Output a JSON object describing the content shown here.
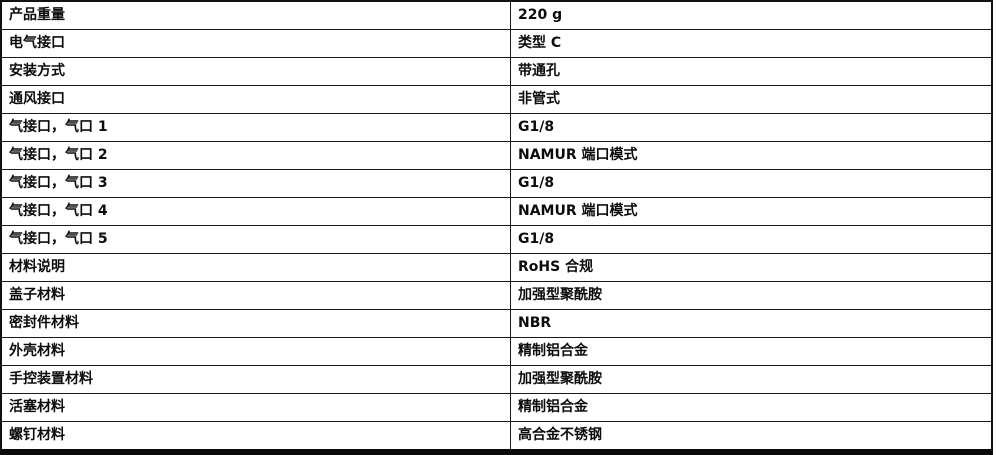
{
  "table": {
    "rows": [
      {
        "label": "产品重量",
        "value": "220 g"
      },
      {
        "label": "电气接口",
        "value": "类型 C"
      },
      {
        "label": "安装方式",
        "value": "带通孔"
      },
      {
        "label": "通风接口",
        "value": "非管式"
      },
      {
        "label": "气接口，气口 1",
        "value": "G1/8"
      },
      {
        "label": "气接口，气口 2",
        "value": "NAMUR 端口模式"
      },
      {
        "label": "气接口，气口 3",
        "value": "G1/8"
      },
      {
        "label": "气接口，气口 4",
        "value": "NAMUR 端口模式"
      },
      {
        "label": "气接口，气口 5",
        "value": "G1/8"
      },
      {
        "label": "材料说明",
        "value": "RoHS 合规"
      },
      {
        "label": "盖子材料",
        "value": "加强型聚酰胺"
      },
      {
        "label": "密封件材料",
        "value": "NBR"
      },
      {
        "label": "外壳材料",
        "value": "精制铝合金"
      },
      {
        "label": "手控装置材料",
        "value": "加强型聚酰胺"
      },
      {
        "label": "活塞材料",
        "value": "精制铝合金"
      },
      {
        "label": "螺钉材料",
        "value": "高合金不锈钢"
      }
    ]
  }
}
